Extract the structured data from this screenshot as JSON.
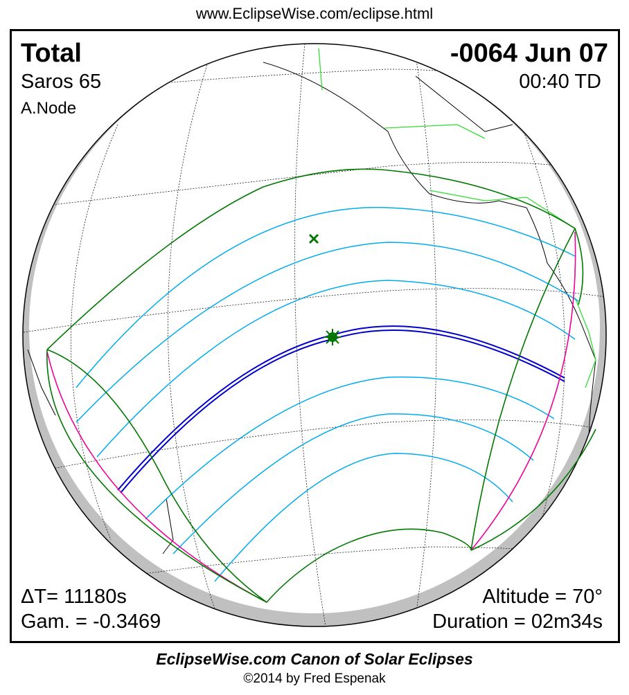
{
  "header": {
    "url": "www.EclipseWise.com/eclipse.html"
  },
  "eclipse": {
    "type": "Total",
    "saros": "Saros  65",
    "node": "A.Node",
    "date": "-0064 Jun 07",
    "time": "00:40 TD",
    "delta_t": "ΔT=  11180s",
    "gamma": "Gam. = -0.3469",
    "altitude": "Altitude = 70°",
    "duration": "Duration = 02m34s"
  },
  "footer": {
    "canon": "EclipseWise.com Canon of Solar Eclipses",
    "copyright": "©2014 by Fred Espenak"
  },
  "colors": {
    "penumbra_limits": "#007700",
    "partial_lines": "#00aaee",
    "central_path": "#0000cc",
    "rise_set": "#ee0099",
    "political_borders": "#33dd33",
    "night_shadow": "#c0c0c0"
  },
  "markers": {
    "greatest_eclipse": "sun-star-icon",
    "sub_solar": "x-mark-icon"
  }
}
